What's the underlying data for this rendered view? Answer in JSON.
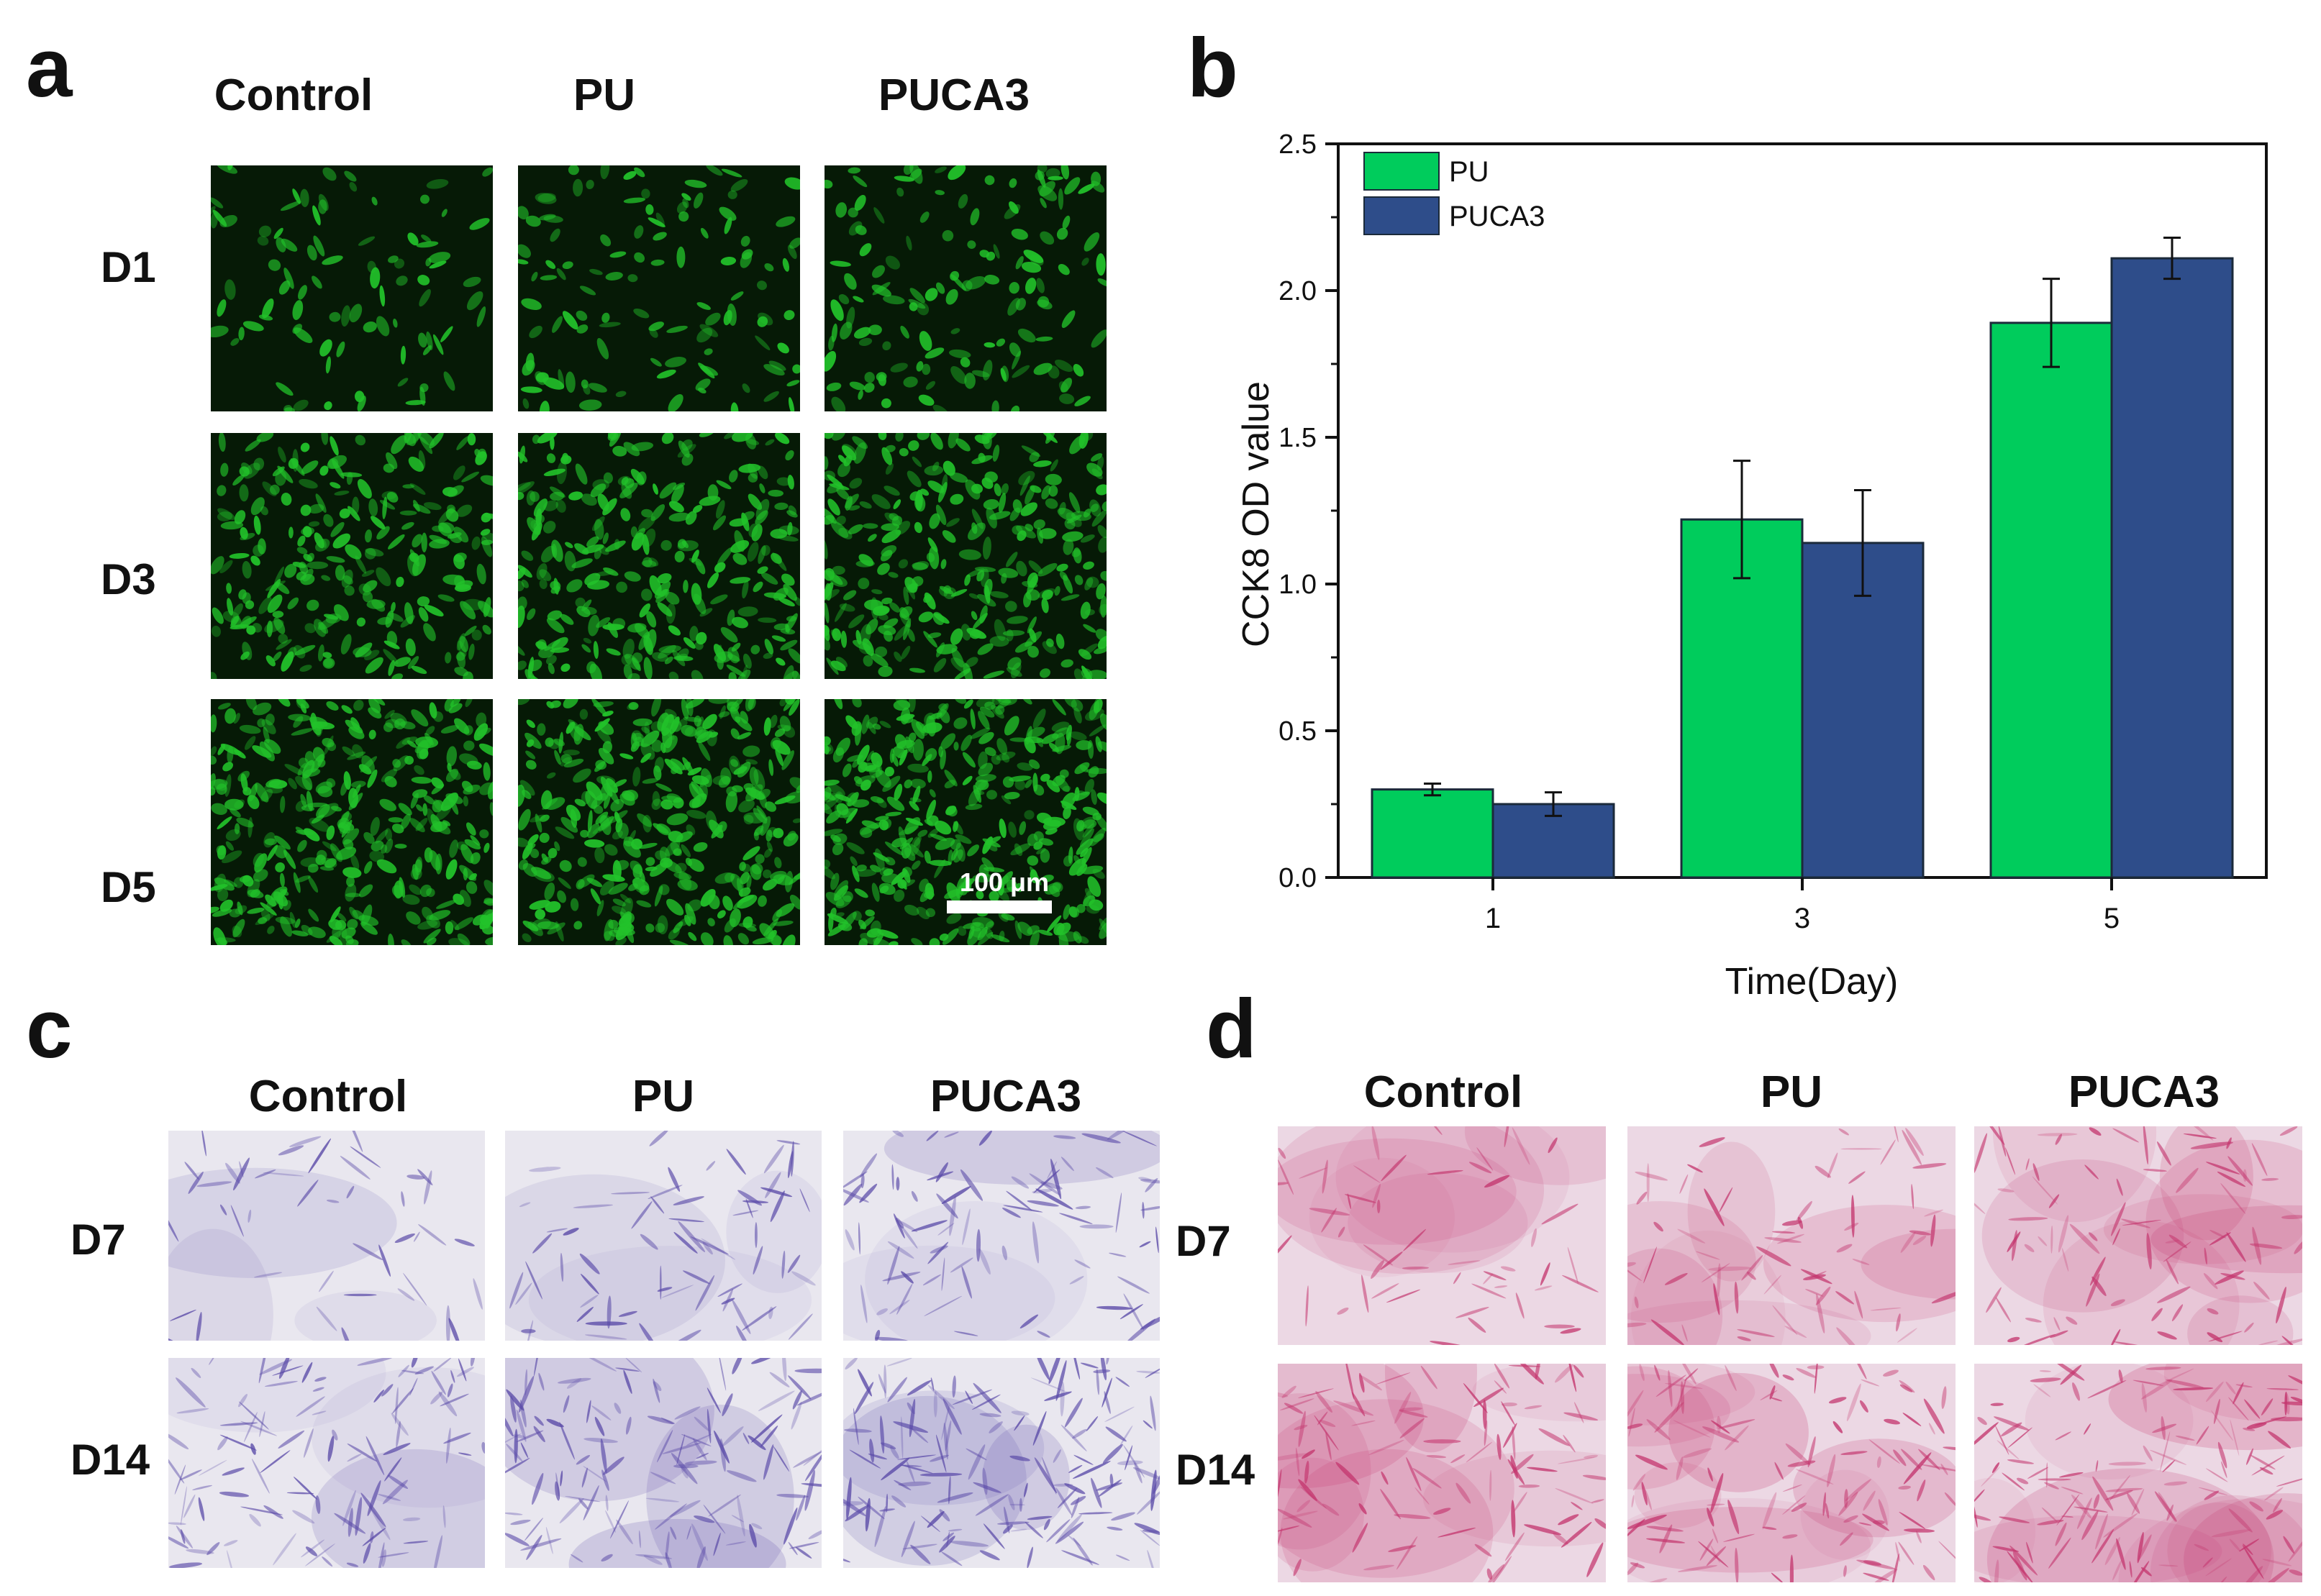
{
  "panels": {
    "a": {
      "letter": "a",
      "columns": [
        "Control",
        "PU",
        "PUCA3"
      ],
      "rows": [
        "D1",
        "D3",
        "D5"
      ],
      "scale_bar": "100 μm"
    },
    "b": {
      "letter": "b"
    },
    "c": {
      "letter": "c",
      "columns": [
        "Control",
        "PU",
        "PUCA3"
      ],
      "rows": [
        "D7",
        "D14"
      ]
    },
    "d": {
      "letter": "d",
      "columns": [
        "Control",
        "PU",
        "PUCA3"
      ],
      "rows": [
        "D7",
        "D14"
      ]
    }
  },
  "colors": {
    "pu": "#00cc5c",
    "puca3": "#2e4d8a",
    "fluorescence": "#22c22a",
    "crystal_violet": "#5a4aa8",
    "alizarin_red": "#c4366e"
  },
  "chart_data": {
    "type": "bar",
    "categories": [
      "1",
      "3",
      "5"
    ],
    "series": [
      {
        "name": "PU",
        "values": [
          0.3,
          1.22,
          1.89
        ],
        "errors": [
          0.02,
          0.2,
          0.15
        ]
      },
      {
        "name": "PUCA3",
        "values": [
          0.25,
          1.14,
          2.11
        ],
        "errors": [
          0.04,
          0.18,
          0.07
        ]
      }
    ],
    "xlabel": "Time(Day)",
    "ylabel": "CCK8 OD value",
    "ylim": [
      0,
      2.5
    ],
    "yticks": [
      "0.0",
      "0.5",
      "1.0",
      "1.5",
      "2.0",
      "2.5"
    ],
    "legend": "top-left",
    "grid": false
  }
}
